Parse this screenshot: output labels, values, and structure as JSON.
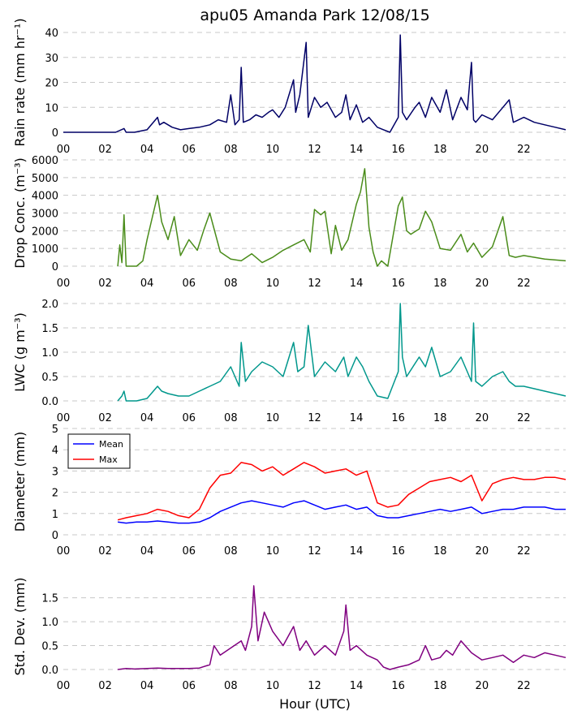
{
  "figure": {
    "title": "apu05 Amanda Park 12/08/15",
    "xlabel": "Hour (UTC)"
  },
  "chart_data": [
    {
      "type": "line",
      "ylabel": "Rain rate (mm hr⁻¹)",
      "xlim": [
        0,
        24
      ],
      "ylim": [
        0,
        40
      ],
      "yticks": [
        0,
        10,
        20,
        30,
        40
      ],
      "xticks": [
        "00",
        "02",
        "04",
        "06",
        "08",
        "10",
        "12",
        "14",
        "16",
        "18",
        "20",
        "22"
      ],
      "series": [
        {
          "color": "#000066",
          "x": [
            0,
            2.5,
            2.9,
            3.0,
            3.4,
            4.0,
            4.5,
            4.6,
            4.8,
            5.2,
            5.6,
            6.0,
            6.5,
            7.0,
            7.4,
            7.8,
            8.0,
            8.2,
            8.4,
            8.5,
            8.6,
            8.9,
            9.2,
            9.5,
            9.8,
            10.0,
            10.3,
            10.6,
            11.0,
            11.1,
            11.3,
            11.6,
            11.7,
            12.0,
            12.3,
            12.6,
            13.0,
            13.3,
            13.5,
            13.7,
            14.0,
            14.3,
            14.6,
            15.0,
            15.3,
            15.6,
            16.0,
            16.1,
            16.2,
            16.4,
            16.8,
            17.0,
            17.3,
            17.6,
            18.0,
            18.3,
            18.6,
            19.0,
            19.3,
            19.5,
            19.6,
            19.7,
            20.0,
            20.5,
            21.0,
            21.3,
            21.5,
            22.0,
            22.5,
            23.0,
            23.5,
            24.0
          ],
          "y": [
            0,
            0,
            1.5,
            0,
            0,
            1,
            6,
            3,
            4,
            2,
            1,
            1.5,
            2,
            3,
            5,
            4,
            15,
            3,
            5,
            26,
            4,
            5,
            7,
            6,
            8,
            9,
            6,
            10,
            21,
            8,
            15,
            36,
            6,
            14,
            10,
            12,
            6,
            8,
            15,
            5,
            11,
            4,
            6,
            2,
            1,
            0,
            6,
            39,
            8,
            5,
            10,
            12,
            6,
            14,
            8,
            17,
            5,
            14,
            9,
            28,
            5,
            4,
            7,
            5,
            10,
            13,
            4,
            6,
            4,
            3,
            2,
            1
          ]
        }
      ]
    },
    {
      "type": "line",
      "ylabel": "Drop Conc. (m⁻³)",
      "xlim": [
        0,
        24
      ],
      "ylim": [
        0,
        6000
      ],
      "yticks": [
        0,
        1000,
        2000,
        3000,
        4000,
        5000,
        6000
      ],
      "xticks": [
        "00",
        "02",
        "04",
        "06",
        "08",
        "10",
        "12",
        "14",
        "16",
        "18",
        "20",
        "22"
      ],
      "series": [
        {
          "color": "#4a8c1a",
          "x": [
            2.6,
            2.7,
            2.8,
            2.9,
            3.0,
            3.5,
            3.8,
            4.0,
            4.3,
            4.5,
            4.7,
            5.0,
            5.3,
            5.6,
            6.0,
            6.4,
            6.7,
            7.0,
            7.5,
            8.0,
            8.5,
            9.0,
            9.5,
            10.0,
            10.5,
            11.0,
            11.5,
            11.8,
            12.0,
            12.3,
            12.5,
            12.8,
            13.0,
            13.3,
            13.6,
            14.0,
            14.2,
            14.4,
            14.6,
            14.8,
            15.0,
            15.2,
            15.5,
            16.0,
            16.2,
            16.4,
            16.6,
            17.0,
            17.3,
            17.6,
            18.0,
            18.5,
            19.0,
            19.3,
            19.6,
            20.0,
            20.5,
            21.0,
            21.3,
            21.6,
            22.0,
            23.0,
            24.0
          ],
          "y": [
            0,
            1200,
            200,
            2900,
            0,
            0,
            300,
            1500,
            3000,
            4000,
            2500,
            1500,
            2800,
            600,
            1500,
            900,
            2000,
            3000,
            800,
            400,
            300,
            700,
            200,
            500,
            900,
            1200,
            1500,
            800,
            3200,
            2900,
            3100,
            700,
            2300,
            900,
            1500,
            3500,
            4200,
            5500,
            2200,
            800,
            0,
            300,
            0,
            3400,
            3900,
            2000,
            1800,
            2100,
            3100,
            2500,
            1000,
            900,
            1800,
            800,
            1300,
            500,
            1100,
            2800,
            600,
            500,
            600,
            400,
            300
          ]
        }
      ]
    },
    {
      "type": "line",
      "ylabel": "LWC (g m⁻³)",
      "xlim": [
        0,
        24
      ],
      "ylim": [
        0,
        2.0
      ],
      "yticks": [
        0.0,
        0.5,
        1.0,
        1.5,
        2.0
      ],
      "xticks": [
        "00",
        "02",
        "04",
        "06",
        "08",
        "10",
        "12",
        "14",
        "16",
        "18",
        "20",
        "22"
      ],
      "series": [
        {
          "color": "#00978c",
          "x": [
            2.6,
            2.8,
            2.9,
            3.0,
            3.5,
            4.0,
            4.5,
            4.7,
            5.0,
            5.5,
            6.0,
            6.5,
            7.0,
            7.5,
            8.0,
            8.4,
            8.5,
            8.7,
            9.0,
            9.5,
            10.0,
            10.5,
            11.0,
            11.2,
            11.5,
            11.7,
            12.0,
            12.5,
            13.0,
            13.4,
            13.6,
            14.0,
            14.3,
            14.6,
            15.0,
            15.5,
            16.0,
            16.1,
            16.2,
            16.4,
            17.0,
            17.3,
            17.6,
            18.0,
            18.5,
            19.0,
            19.5,
            19.6,
            19.7,
            20.0,
            20.5,
            21.0,
            21.3,
            21.6,
            22.0,
            23.0,
            24.0
          ],
          "y": [
            0,
            0.1,
            0.2,
            0,
            0,
            0.05,
            0.3,
            0.2,
            0.15,
            0.1,
            0.1,
            0.2,
            0.3,
            0.4,
            0.7,
            0.3,
            1.2,
            0.4,
            0.6,
            0.8,
            0.7,
            0.5,
            1.2,
            0.6,
            0.7,
            1.55,
            0.5,
            0.8,
            0.6,
            0.9,
            0.5,
            0.9,
            0.7,
            0.4,
            0.1,
            0.05,
            0.6,
            2.0,
            0.9,
            0.5,
            0.9,
            0.7,
            1.1,
            0.5,
            0.6,
            0.9,
            0.4,
            1.6,
            0.4,
            0.3,
            0.5,
            0.6,
            0.4,
            0.3,
            0.3,
            0.2,
            0.1
          ]
        }
      ]
    },
    {
      "type": "line",
      "ylabel": "Diameter (mm)",
      "xlim": [
        0,
        24
      ],
      "ylim": [
        0,
        5
      ],
      "yticks": [
        0,
        1,
        2,
        3,
        4,
        5
      ],
      "xticks": [
        "00",
        "02",
        "04",
        "06",
        "08",
        "10",
        "12",
        "14",
        "16",
        "18",
        "20",
        "22"
      ],
      "legend": {
        "position": "upper-left",
        "entries": [
          "Mean",
          "Max"
        ]
      },
      "series": [
        {
          "name": "Mean",
          "color": "#0000ff",
          "x": [
            2.6,
            3.0,
            3.5,
            4.0,
            4.5,
            5.0,
            5.5,
            6.0,
            6.5,
            7.0,
            7.5,
            8.0,
            8.5,
            9.0,
            9.5,
            10.0,
            10.5,
            11.0,
            11.5,
            12.0,
            12.5,
            13.0,
            13.5,
            14.0,
            14.5,
            15.0,
            15.5,
            16.0,
            16.5,
            17.0,
            17.5,
            18.0,
            18.5,
            19.0,
            19.5,
            20.0,
            20.5,
            21.0,
            21.5,
            22.0,
            22.5,
            23.0,
            23.5,
            24.0
          ],
          "y": [
            0.6,
            0.55,
            0.6,
            0.6,
            0.65,
            0.6,
            0.55,
            0.55,
            0.6,
            0.8,
            1.1,
            1.3,
            1.5,
            1.6,
            1.5,
            1.4,
            1.3,
            1.5,
            1.6,
            1.4,
            1.2,
            1.3,
            1.4,
            1.2,
            1.3,
            0.9,
            0.8,
            0.8,
            0.9,
            1.0,
            1.1,
            1.2,
            1.1,
            1.2,
            1.3,
            1.0,
            1.1,
            1.2,
            1.2,
            1.3,
            1.3,
            1.3,
            1.2,
            1.2
          ]
        },
        {
          "name": "Max",
          "color": "#ff0000",
          "x": [
            2.6,
            3.0,
            3.5,
            4.0,
            4.5,
            5.0,
            5.5,
            6.0,
            6.5,
            7.0,
            7.5,
            8.0,
            8.5,
            9.0,
            9.5,
            10.0,
            10.5,
            11.0,
            11.5,
            12.0,
            12.5,
            13.0,
            13.5,
            14.0,
            14.5,
            15.0,
            15.5,
            16.0,
            16.5,
            17.0,
            17.5,
            18.0,
            18.5,
            19.0,
            19.5,
            20.0,
            20.5,
            21.0,
            21.5,
            22.0,
            22.5,
            23.0,
            23.5,
            24.0
          ],
          "y": [
            0.7,
            0.8,
            0.9,
            1.0,
            1.2,
            1.1,
            0.9,
            0.8,
            1.2,
            2.2,
            2.8,
            2.9,
            3.4,
            3.3,
            3.0,
            3.2,
            2.8,
            3.1,
            3.4,
            3.2,
            2.9,
            3.0,
            3.1,
            2.8,
            3.0,
            1.5,
            1.3,
            1.4,
            1.9,
            2.2,
            2.5,
            2.6,
            2.7,
            2.5,
            2.8,
            1.6,
            2.4,
            2.6,
            2.7,
            2.6,
            2.6,
            2.7,
            2.7,
            2.6
          ]
        }
      ]
    },
    {
      "type": "line",
      "ylabel": "Std. Dev. (mm)",
      "xlim": [
        0,
        24
      ],
      "ylim": [
        0,
        1.8
      ],
      "yticks": [
        0.0,
        0.5,
        1.0,
        1.5
      ],
      "xticks": [
        "00",
        "02",
        "04",
        "06",
        "08",
        "10",
        "12",
        "14",
        "16",
        "18",
        "20",
        "22"
      ],
      "series": [
        {
          "color": "#800080",
          "x": [
            2.6,
            3.0,
            3.4,
            4.0,
            4.5,
            5.0,
            5.5,
            6.0,
            6.5,
            7.0,
            7.2,
            7.5,
            8.0,
            8.5,
            8.7,
            9.0,
            9.1,
            9.3,
            9.6,
            10.0,
            10.5,
            11.0,
            11.3,
            11.6,
            12.0,
            12.5,
            13.0,
            13.4,
            13.5,
            13.7,
            14.0,
            14.5,
            15.0,
            15.3,
            15.6,
            16.0,
            16.5,
            17.0,
            17.3,
            17.6,
            18.0,
            18.3,
            18.6,
            19.0,
            19.5,
            20.0,
            20.5,
            21.0,
            21.5,
            22.0,
            22.5,
            23.0,
            23.5,
            24.0
          ],
          "y": [
            0,
            0.02,
            0.01,
            0.02,
            0.03,
            0.02,
            0.02,
            0.02,
            0.03,
            0.1,
            0.5,
            0.3,
            0.45,
            0.6,
            0.4,
            0.9,
            1.75,
            0.6,
            1.2,
            0.8,
            0.5,
            0.9,
            0.4,
            0.6,
            0.3,
            0.5,
            0.3,
            0.8,
            1.35,
            0.4,
            0.5,
            0.3,
            0.2,
            0.05,
            0.0,
            0.05,
            0.1,
            0.2,
            0.5,
            0.2,
            0.25,
            0.4,
            0.3,
            0.6,
            0.35,
            0.2,
            0.25,
            0.3,
            0.15,
            0.3,
            0.25,
            0.35,
            0.3,
            0.25
          ]
        }
      ]
    }
  ]
}
